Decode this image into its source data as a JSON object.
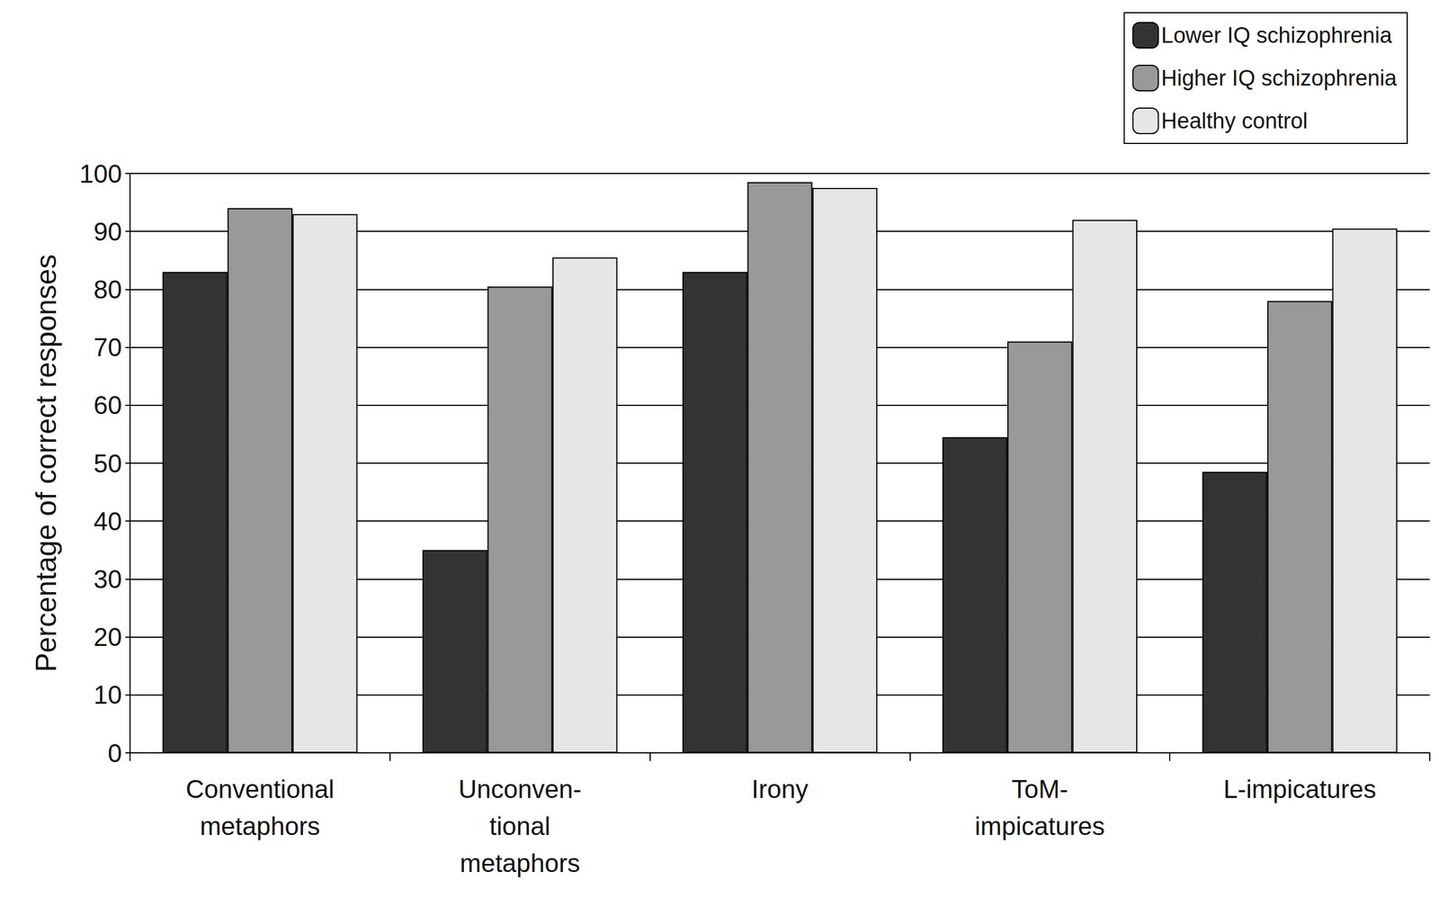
{
  "chart_data": {
    "type": "bar",
    "y_label": "Percentage of correct responses",
    "categories": [
      "Conventional\nmetaphors",
      "Unconven-\ntional\nmetaphors",
      "Irony",
      "ToM-\nimpicatures",
      "L-impicatures"
    ],
    "series": [
      {
        "name": "Lower IQ schizophrenia",
        "color": "#333333",
        "values": [
          83,
          35,
          83,
          54.5,
          48.5
        ]
      },
      {
        "name": "Higher IQ schizophrenia",
        "color": "#999999",
        "values": [
          94,
          80.5,
          98.5,
          71,
          78
        ]
      },
      {
        "name": "Healthy control",
        "color": "#e6e6e6",
        "values": [
          93,
          85.5,
          97.5,
          92,
          90.5
        ]
      }
    ],
    "ylim": [
      0,
      100
    ],
    "yticks": [
      0,
      10,
      20,
      30,
      40,
      50,
      60,
      70,
      80,
      90,
      100
    ],
    "grid": true,
    "legend": "upper right"
  }
}
